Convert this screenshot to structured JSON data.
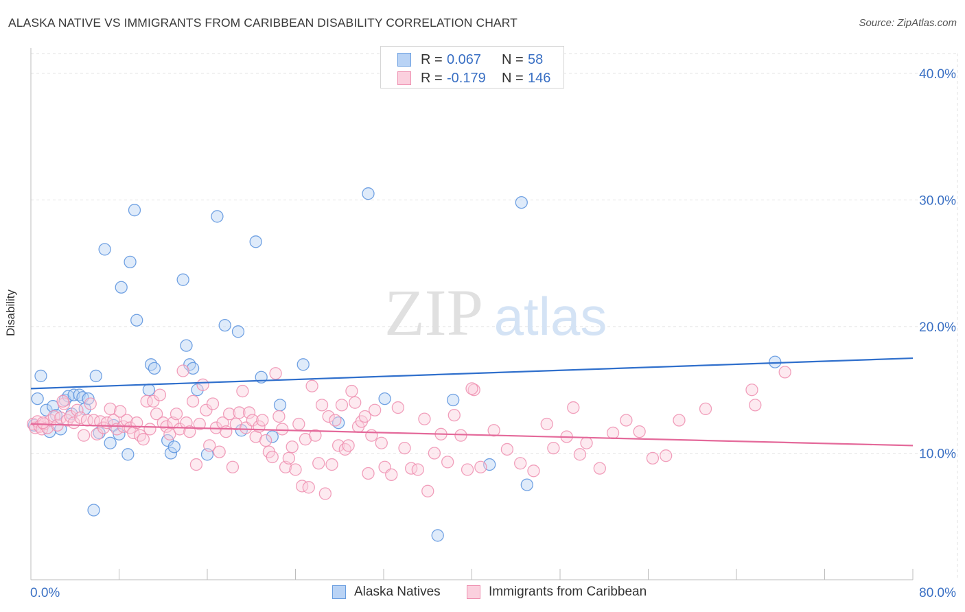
{
  "header": {
    "title": "ALASKA NATIVE VS IMMIGRANTS FROM CARIBBEAN DISABILITY CORRELATION CHART",
    "source": "Source: ZipAtlas.com"
  },
  "watermark": {
    "zip": "ZIP",
    "atlas": "atlas"
  },
  "legend_top": {
    "rows": [
      {
        "r_label": "R =",
        "r_value": "0.067",
        "n_label": "N =",
        "n_value": "58",
        "color": "#6a9ee0",
        "fill": "#b9d3f5"
      },
      {
        "r_label": "R =",
        "r_value": "-0.179",
        "n_label": "N =",
        "n_value": "146",
        "color": "#ee8fb0",
        "fill": "#fbd0de"
      }
    ]
  },
  "legend_bottom": {
    "items": [
      {
        "label": "Alaska Natives",
        "color": "#6a9ee0",
        "fill": "#b9d3f5"
      },
      {
        "label": "Immigrants from Caribbean",
        "color": "#ee8fb0",
        "fill": "#fbd0de"
      }
    ]
  },
  "chart_data": {
    "type": "scatter",
    "title": "ALASKA NATIVE VS IMMIGRANTS FROM CARIBBEAN DISABILITY CORRELATION CHART",
    "xlabel": "",
    "ylabel": "Disability",
    "xlim": [
      0,
      80
    ],
    "ylim": [
      0,
      42
    ],
    "x_tick_labels": [
      "0.0%",
      "80.0%"
    ],
    "y_ticks": [
      10,
      20,
      30,
      40
    ],
    "y_tick_labels": [
      "10.0%",
      "20.0%",
      "30.0%",
      "40.0%"
    ],
    "grid": true,
    "legend_placement": "bottom",
    "series": [
      {
        "name": "Alaska Natives",
        "color": "#5b93de",
        "fill": "#b9d3f5",
        "trend": {
          "x": [
            0,
            80
          ],
          "y": [
            15.1,
            17.5
          ],
          "color": "#2f6fcc"
        },
        "points": [
          [
            0.6,
            14.3
          ],
          [
            0.9,
            16.1
          ],
          [
            1.4,
            13.4
          ],
          [
            1.7,
            11.7
          ],
          [
            2.0,
            13.7
          ],
          [
            2.3,
            13.0
          ],
          [
            2.7,
            11.9
          ],
          [
            3.1,
            14.2
          ],
          [
            3.4,
            14.5
          ],
          [
            3.7,
            13.1
          ],
          [
            3.9,
            14.6
          ],
          [
            4.4,
            14.6
          ],
          [
            4.7,
            14.4
          ],
          [
            4.9,
            13.5
          ],
          [
            5.2,
            14.3
          ],
          [
            5.9,
            16.1
          ],
          [
            6.2,
            11.6
          ],
          [
            6.7,
            26.1
          ],
          [
            7.2,
            10.8
          ],
          [
            7.5,
            12.2
          ],
          [
            8.0,
            11.5
          ],
          [
            8.2,
            23.1
          ],
          [
            8.8,
            9.9
          ],
          [
            9.0,
            25.1
          ],
          [
            9.4,
            29.2
          ],
          [
            9.6,
            20.5
          ],
          [
            10.7,
            15.0
          ],
          [
            10.9,
            17.0
          ],
          [
            11.2,
            16.7
          ],
          [
            12.4,
            11.0
          ],
          [
            12.7,
            10.0
          ],
          [
            13.0,
            10.5
          ],
          [
            13.8,
            23.7
          ],
          [
            14.1,
            18.5
          ],
          [
            14.4,
            17.0
          ],
          [
            14.7,
            16.7
          ],
          [
            15.1,
            15.0
          ],
          [
            16.0,
            9.9
          ],
          [
            16.9,
            28.7
          ],
          [
            17.6,
            20.1
          ],
          [
            18.8,
            19.6
          ],
          [
            19.1,
            11.8
          ],
          [
            20.4,
            26.7
          ],
          [
            20.9,
            16.0
          ],
          [
            21.9,
            11.3
          ],
          [
            22.6,
            13.8
          ],
          [
            24.7,
            17.0
          ],
          [
            27.9,
            12.4
          ],
          [
            30.6,
            30.5
          ],
          [
            32.1,
            14.3
          ],
          [
            36.9,
            3.5
          ],
          [
            38.3,
            14.2
          ],
          [
            41.6,
            9.1
          ],
          [
            44.5,
            29.8
          ],
          [
            45.0,
            7.5
          ],
          [
            5.7,
            5.5
          ],
          [
            67.5,
            17.2
          ],
          [
            0.3,
            12.2
          ]
        ]
      },
      {
        "name": "Immigrants from Caribbean",
        "color": "#ee8fb0",
        "fill": "#fbd0de",
        "trend": {
          "x": [
            0,
            80
          ],
          "y": [
            12.3,
            10.6
          ],
          "color": "#e4699a"
        },
        "points": [
          [
            0.2,
            12.3
          ],
          [
            0.4,
            12.0
          ],
          [
            0.6,
            12.5
          ],
          [
            0.8,
            12.1
          ],
          [
            1.0,
            11.9
          ],
          [
            1.2,
            12.3
          ],
          [
            1.5,
            12.0
          ],
          [
            1.8,
            12.6
          ],
          [
            2.1,
            12.9
          ],
          [
            2.4,
            12.2
          ],
          [
            2.7,
            12.8
          ],
          [
            3.0,
            13.9
          ],
          [
            3.3,
            12.6
          ],
          [
            3.6,
            12.9
          ],
          [
            3.9,
            12.4
          ],
          [
            4.2,
            13.4
          ],
          [
            4.5,
            12.8
          ],
          [
            4.8,
            11.4
          ],
          [
            5.1,
            12.6
          ],
          [
            5.4,
            13.9
          ],
          [
            5.7,
            12.6
          ],
          [
            6.0,
            11.5
          ],
          [
            6.3,
            12.5
          ],
          [
            6.6,
            12.0
          ],
          [
            6.9,
            12.4
          ],
          [
            7.2,
            13.5
          ],
          [
            7.5,
            12.6
          ],
          [
            7.8,
            11.9
          ],
          [
            8.1,
            13.3
          ],
          [
            8.4,
            12.1
          ],
          [
            8.7,
            12.6
          ],
          [
            9.0,
            12.0
          ],
          [
            9.3,
            11.6
          ],
          [
            9.6,
            12.4
          ],
          [
            9.9,
            11.4
          ],
          [
            10.2,
            11.1
          ],
          [
            10.5,
            14.1
          ],
          [
            10.8,
            11.9
          ],
          [
            11.1,
            14.1
          ],
          [
            11.4,
            13.1
          ],
          [
            11.7,
            14.6
          ],
          [
            12.0,
            12.4
          ],
          [
            12.3,
            12.1
          ],
          [
            12.6,
            11.5
          ],
          [
            12.9,
            12.4
          ],
          [
            13.2,
            13.1
          ],
          [
            13.5,
            11.9
          ],
          [
            13.8,
            16.5
          ],
          [
            14.1,
            12.4
          ],
          [
            14.4,
            11.7
          ],
          [
            14.7,
            14.1
          ],
          [
            15.0,
            9.1
          ],
          [
            15.3,
            12.3
          ],
          [
            15.6,
            15.4
          ],
          [
            15.9,
            13.4
          ],
          [
            16.2,
            10.6
          ],
          [
            16.5,
            13.9
          ],
          [
            16.8,
            12.0
          ],
          [
            17.1,
            10.1
          ],
          [
            17.4,
            12.4
          ],
          [
            17.7,
            11.7
          ],
          [
            18.0,
            13.1
          ],
          [
            18.3,
            8.9
          ],
          [
            18.6,
            12.3
          ],
          [
            18.9,
            13.2
          ],
          [
            19.2,
            14.9
          ],
          [
            19.5,
            12.0
          ],
          [
            19.8,
            13.2
          ],
          [
            20.1,
            12.6
          ],
          [
            20.4,
            11.3
          ],
          [
            20.7,
            12.1
          ],
          [
            21.0,
            12.6
          ],
          [
            21.3,
            11.0
          ],
          [
            21.6,
            10.1
          ],
          [
            21.9,
            9.7
          ],
          [
            22.2,
            16.3
          ],
          [
            22.5,
            12.9
          ],
          [
            22.8,
            11.9
          ],
          [
            23.1,
            8.9
          ],
          [
            23.4,
            9.6
          ],
          [
            23.7,
            10.5
          ],
          [
            24.0,
            8.7
          ],
          [
            24.3,
            12.3
          ],
          [
            24.6,
            7.4
          ],
          [
            24.9,
            11.1
          ],
          [
            25.2,
            7.3
          ],
          [
            25.5,
            15.3
          ],
          [
            25.8,
            11.4
          ],
          [
            26.1,
            9.2
          ],
          [
            26.4,
            13.8
          ],
          [
            26.7,
            6.8
          ],
          [
            27.0,
            12.9
          ],
          [
            27.3,
            9.1
          ],
          [
            27.6,
            12.6
          ],
          [
            27.9,
            10.6
          ],
          [
            28.2,
            13.8
          ],
          [
            28.5,
            10.3
          ],
          [
            28.8,
            10.6
          ],
          [
            29.1,
            14.9
          ],
          [
            29.4,
            14.0
          ],
          [
            29.7,
            12.1
          ],
          [
            30.0,
            12.5
          ],
          [
            30.3,
            12.9
          ],
          [
            30.6,
            8.4
          ],
          [
            30.9,
            11.4
          ],
          [
            31.2,
            13.4
          ],
          [
            31.8,
            10.8
          ],
          [
            32.1,
            8.9
          ],
          [
            32.7,
            8.3
          ],
          [
            33.3,
            13.6
          ],
          [
            33.9,
            10.4
          ],
          [
            34.5,
            8.8
          ],
          [
            35.1,
            8.7
          ],
          [
            35.7,
            12.7
          ],
          [
            36.0,
            7.0
          ],
          [
            36.6,
            10.0
          ],
          [
            37.2,
            11.5
          ],
          [
            37.8,
            9.3
          ],
          [
            38.4,
            13.0
          ],
          [
            39.0,
            11.4
          ],
          [
            39.6,
            8.7
          ],
          [
            40.2,
            15.0
          ],
          [
            40.8,
            8.9
          ],
          [
            42.0,
            11.8
          ],
          [
            43.2,
            10.3
          ],
          [
            44.4,
            9.2
          ],
          [
            45.6,
            8.6
          ],
          [
            46.8,
            12.3
          ],
          [
            47.4,
            10.4
          ],
          [
            48.6,
            11.3
          ],
          [
            49.2,
            13.6
          ],
          [
            49.8,
            9.9
          ],
          [
            50.4,
            10.8
          ],
          [
            51.6,
            8.8
          ],
          [
            52.8,
            11.6
          ],
          [
            54.0,
            12.6
          ],
          [
            55.2,
            11.7
          ],
          [
            56.4,
            9.6
          ],
          [
            57.6,
            9.8
          ],
          [
            58.8,
            12.6
          ],
          [
            61.2,
            13.5
          ],
          [
            65.4,
            15.0
          ],
          [
            65.7,
            13.8
          ],
          [
            68.4,
            16.4
          ],
          [
            40.0,
            15.1
          ],
          [
            2.9,
            14.1
          ],
          [
            1.1,
            12.4
          ]
        ]
      }
    ]
  }
}
